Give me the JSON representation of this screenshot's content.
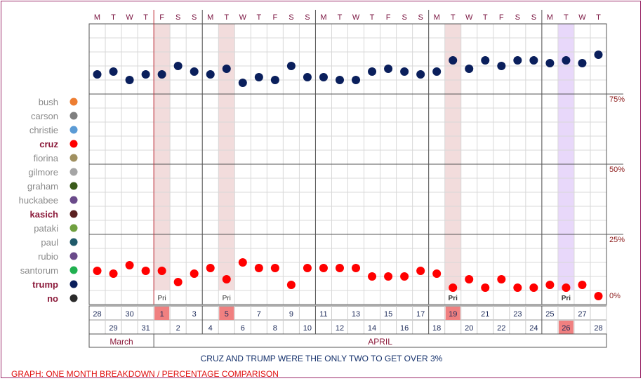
{
  "title": "CRUZ AND TRUMP WERE THE ONLY TWO TO GET OVER 3%",
  "caption": "GRAPH: ONE MONTH BREAKDOWN / PERCENTAGE COMPARISON",
  "legend": [
    {
      "name": "bush",
      "color": "#ed7d31",
      "active": false
    },
    {
      "name": "carson",
      "color": "#7f7f7f",
      "active": false
    },
    {
      "name": "christie",
      "color": "#5b9bd5",
      "active": false
    },
    {
      "name": "cruz",
      "color": "#ff0000",
      "active": true
    },
    {
      "name": "fiorina",
      "color": "#a09060",
      "active": false
    },
    {
      "name": "gilmore",
      "color": "#a5a5a5",
      "active": false
    },
    {
      "name": "graham",
      "color": "#3a5a1a",
      "active": false
    },
    {
      "name": "huckabee",
      "color": "#6a4a8a",
      "active": false
    },
    {
      "name": "kasich",
      "color": "#5a2020",
      "active": true
    },
    {
      "name": "pataki",
      "color": "#70a040",
      "active": false
    },
    {
      "name": "paul",
      "color": "#205a6a",
      "active": false
    },
    {
      "name": "rubio",
      "color": "#6a4a8a",
      "active": false
    },
    {
      "name": "santorum",
      "color": "#20b050",
      "active": false
    },
    {
      "name": "trump",
      "color": "#0a1f5c",
      "active": true
    },
    {
      "name": "no",
      "color": "#2a2a2a",
      "active": true
    }
  ],
  "chart_data": {
    "type": "scatter",
    "x_dates": [
      "28",
      "29",
      "30",
      "31",
      "1",
      "2",
      "3",
      "4",
      "5",
      "6",
      "7",
      "8",
      "9",
      "10",
      "11",
      "12",
      "13",
      "14",
      "15",
      "16",
      "17",
      "18",
      "19",
      "20",
      "21",
      "22",
      "23",
      "24",
      "25",
      "26",
      "27",
      "28"
    ],
    "x_days": [
      "M",
      "T",
      "W",
      "T",
      "F",
      "S",
      "S",
      "M",
      "T",
      "W",
      "T",
      "F",
      "S",
      "S",
      "M",
      "T",
      "W",
      "T",
      "F",
      "S",
      "S",
      "M",
      "T",
      "W",
      "T",
      "F",
      "S",
      "S",
      "M",
      "T",
      "W",
      "T"
    ],
    "months": [
      {
        "label": "March",
        "start": 0,
        "end": 3
      },
      {
        "label": "APRIL",
        "start": 4,
        "end": 31
      }
    ],
    "y_ticks": [
      "0%",
      "25%",
      "50%",
      "75%"
    ],
    "ylim": [
      0,
      100
    ],
    "primaries": [
      {
        "index": 4,
        "label": "Pri",
        "bold": false,
        "color": "#f2dcdc"
      },
      {
        "index": 8,
        "label": "Pri",
        "bold": false,
        "color": "#f2dcdc"
      },
      {
        "index": 22,
        "label": "Pri",
        "bold": true,
        "color": "#f2dcdc"
      },
      {
        "index": 29,
        "label": "Pri",
        "bold": true,
        "color": "#e8d8fa"
      }
    ],
    "highlight_dates": [
      4,
      8,
      22,
      29
    ],
    "series": [
      {
        "name": "trump",
        "color": "#0a1f5c",
        "values": [
          82,
          83,
          80,
          82,
          82,
          85,
          83,
          82,
          84,
          79,
          81,
          80,
          85,
          81,
          81,
          80,
          80,
          83,
          84,
          83,
          82,
          83,
          87,
          84,
          87,
          85,
          87,
          87,
          86,
          87,
          86,
          89
        ]
      },
      {
        "name": "cruz",
        "color": "#ff0000",
        "values": [
          12,
          11,
          14,
          12,
          12,
          8,
          11,
          13,
          9,
          15,
          13,
          13,
          7,
          13,
          13,
          13,
          13,
          10,
          10,
          10,
          12,
          11,
          6,
          9,
          6,
          9,
          6,
          6,
          7,
          6,
          7,
          3
        ]
      }
    ]
  }
}
